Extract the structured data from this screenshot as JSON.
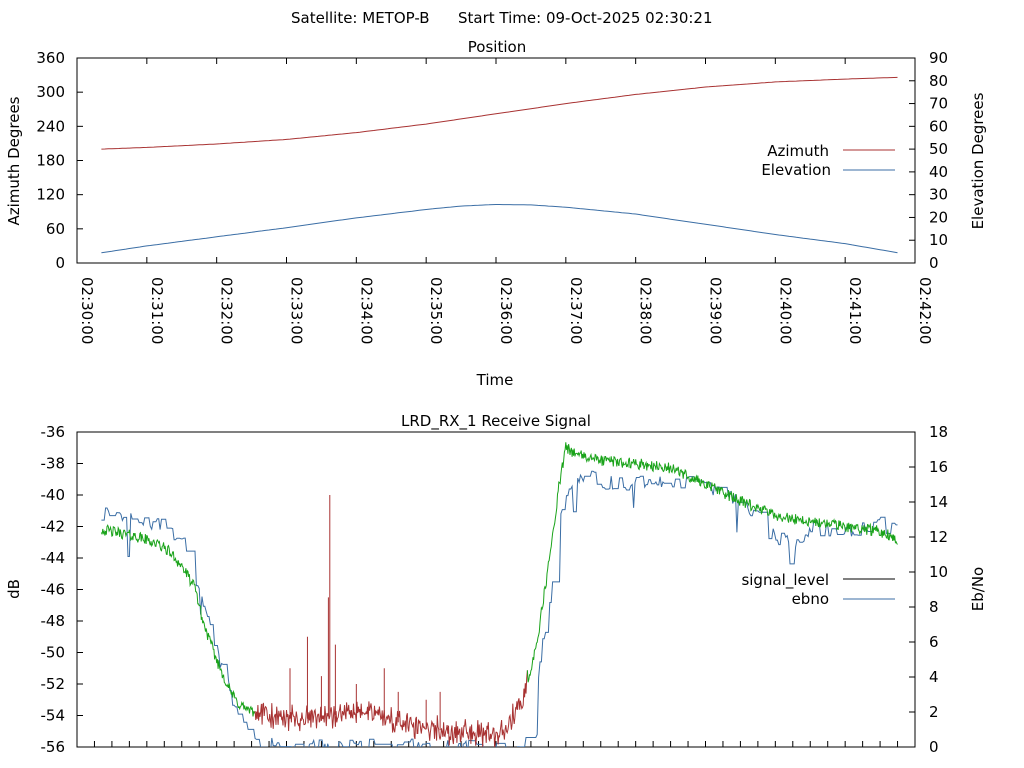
{
  "header": {
    "satellite_text": "Satellite: METOP-B",
    "start_time_text": "Start Time: 09-Oct-2025 02:30:21"
  },
  "chart_data": [
    {
      "type": "line",
      "title": "Position",
      "xlabel": "Time",
      "ylabel": "Azimuth Degrees",
      "y2label": "Elevation Degrees",
      "x_ticks": [
        "02:30:00",
        "02:31:00",
        "02:32:00",
        "02:33:00",
        "02:34:00",
        "02:35:00",
        "02:36:00",
        "02:37:00",
        "02:38:00",
        "02:39:00",
        "02:40:00",
        "02:41:00",
        "02:42:00"
      ],
      "x_range_minutes": [
        0,
        12
      ],
      "ylim": [
        0,
        360
      ],
      "y_ticks": [
        0,
        60,
        120,
        180,
        240,
        300,
        360
      ],
      "y2lim": [
        0,
        90
      ],
      "y2_ticks": [
        0,
        10,
        20,
        30,
        40,
        50,
        60,
        70,
        80,
        90
      ],
      "legend_position": "right-middle",
      "series": [
        {
          "name": "Azimuth",
          "axis": "y",
          "color": "#a83232",
          "x": [
            0.35,
            1,
            2,
            3,
            4,
            5,
            6,
            7,
            8,
            9,
            10,
            11,
            11.75
          ],
          "values": [
            200,
            203,
            209,
            217,
            229,
            244,
            262,
            280,
            296,
            309,
            318,
            323,
            326
          ]
        },
        {
          "name": "Elevation",
          "axis": "y2",
          "color": "#3b6ea5",
          "x": [
            0.35,
            1,
            2,
            3,
            4,
            5,
            5.5,
            6,
            6.5,
            7,
            8,
            9,
            10,
            11,
            11.75
          ],
          "values": [
            4.5,
            7.5,
            11.5,
            15.5,
            19.8,
            23.5,
            25.0,
            25.7,
            25.5,
            24.5,
            21.5,
            17,
            12.5,
            8.5,
            4.5
          ]
        }
      ]
    },
    {
      "type": "line",
      "title": "LRD_RX_1 Receive Signal",
      "xlabel": "",
      "ylabel": "dB",
      "y2label": "Eb/No",
      "x_range_minutes": [
        0,
        12
      ],
      "ylim": [
        -56,
        -36
      ],
      "y_ticks": [
        -56,
        -54,
        -52,
        -50,
        -48,
        -46,
        -44,
        -42,
        -40,
        -38,
        -36
      ],
      "y2lim": [
        0,
        18
      ],
      "y2_ticks": [
        0,
        2,
        4,
        6,
        8,
        10,
        12,
        14,
        16,
        18
      ],
      "legend_position": "right-middle",
      "series": [
        {
          "name": "signal_level",
          "axis": "y",
          "color": "#000000",
          "segment_colors": {
            "high_snr": "#1aa31a",
            "low_snr": "#a83232"
          },
          "x": [
            0.35,
            0.6,
            0.9,
            1.1,
            1.3,
            1.5,
            1.7,
            1.8,
            2.0,
            2.2,
            2.3,
            2.5,
            2.7,
            3.0,
            3.3,
            3.6,
            3.9,
            4.2,
            4.5,
            4.8,
            5.1,
            5.4,
            5.7,
            6.0,
            6.2,
            6.4,
            6.6,
            6.8,
            6.9,
            7.0,
            7.2,
            7.5,
            8.0,
            8.5,
            9.0,
            9.5,
            10.0,
            10.5,
            11.0,
            11.5,
            11.75
          ],
          "values": [
            -42.2,
            -42.4,
            -42.7,
            -43.0,
            -43.5,
            -44.5,
            -46.0,
            -48.0,
            -50.5,
            -52.5,
            -53.2,
            -53.8,
            -54.0,
            -54.2,
            -54.2,
            -54.0,
            -53.9,
            -53.8,
            -54.3,
            -54.7,
            -54.9,
            -55.0,
            -55.1,
            -55.2,
            -54.5,
            -53.0,
            -49.0,
            -43.0,
            -39.5,
            -37.0,
            -37.5,
            -37.8,
            -38.0,
            -38.3,
            -39.3,
            -40.4,
            -41.3,
            -41.7,
            -42.0,
            -42.3,
            -42.8
          ]
        },
        {
          "name": "ebno",
          "axis": "y2",
          "color": "#3b6ea5",
          "x": [
            0.35,
            0.6,
            0.9,
            1.1,
            1.3,
            1.5,
            1.7,
            1.8,
            2.0,
            2.2,
            2.4,
            2.6,
            3.0,
            4.0,
            5.0,
            6.0,
            6.3,
            6.5,
            6.6,
            6.8,
            6.9,
            7.0,
            7.2,
            7.5,
            8.0,
            8.5,
            9.0,
            9.5,
            9.8,
            10.0,
            10.3,
            10.5,
            11.0,
            11.5,
            11.75
          ],
          "values": [
            13.2,
            13.3,
            13.0,
            12.8,
            12.5,
            11.8,
            10.0,
            8.0,
            5.5,
            3.0,
            1.0,
            0.2,
            0.0,
            0.0,
            0.0,
            0.0,
            0.0,
            0.5,
            4.0,
            9.0,
            12.5,
            14.5,
            15.5,
            15.2,
            15.0,
            15.3,
            14.8,
            14.2,
            13.0,
            12.0,
            11.8,
            12.5,
            12.2,
            12.7,
            12.2
          ]
        }
      ],
      "spikes": {
        "x": [
          3.05,
          3.3,
          3.5,
          3.6,
          3.62,
          3.7,
          4.0,
          4.4,
          4.6,
          5.0,
          5.2
        ],
        "values": [
          -51.0,
          -49.0,
          -51.5,
          -46.5,
          -40.0,
          -49.5,
          -52.0,
          -51.0,
          -52.5,
          -53.0,
          -52.5
        ]
      }
    }
  ]
}
